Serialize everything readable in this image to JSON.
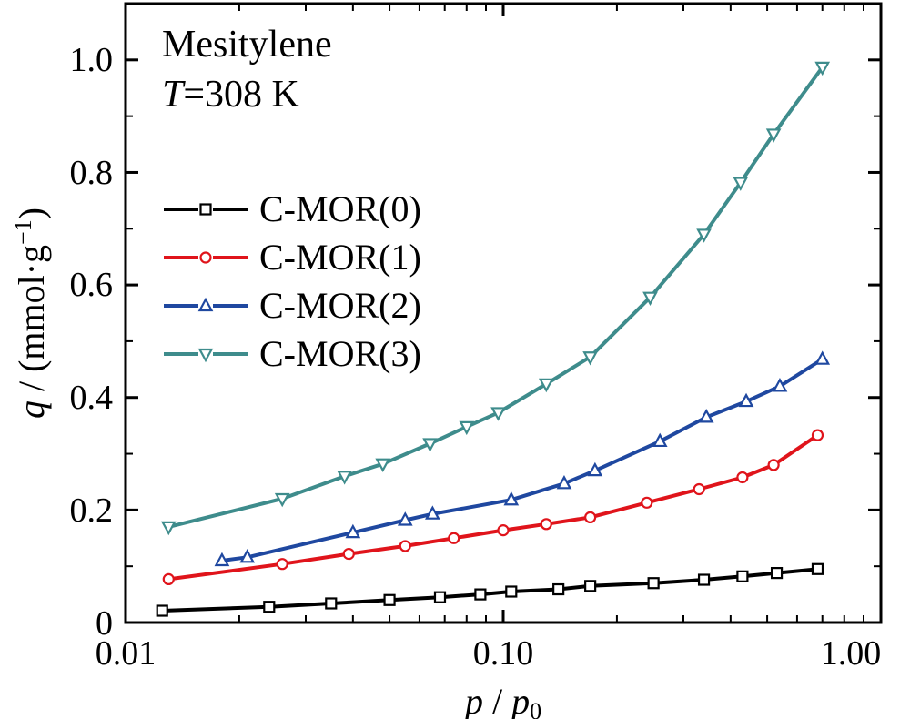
{
  "chart_data": {
    "type": "line",
    "title": "",
    "annotation": {
      "line1": "Mesitylene",
      "line2_italic": "T",
      "line2_rest": "=308 K"
    },
    "xlabel": {
      "italic_p": "p",
      "slash": " / ",
      "italic_p2": "p",
      "sub": "0"
    },
    "ylabel": {
      "italic_q": "q",
      "rest": " / (mmol·g",
      "sup": "−1",
      "close": ")"
    },
    "x_scale": "log",
    "xlim": [
      0.01,
      1.0
    ],
    "ylim": [
      0,
      1.1
    ],
    "x_ticks": [
      0.01,
      0.1,
      1.0
    ],
    "x_tick_labels": [
      "0.01",
      "0.10",
      "1.00"
    ],
    "y_ticks": [
      0,
      0.2,
      0.4,
      0.6,
      0.8,
      1.0
    ],
    "y_tick_labels": [
      "0",
      "0.2",
      "0.4",
      "0.6",
      "0.8",
      "1.0"
    ],
    "grid": false,
    "legend_position": "center-left",
    "series": [
      {
        "name": "C-MOR(0)",
        "color": "#000000",
        "marker": "square",
        "x": [
          0.0125,
          0.024,
          0.035,
          0.05,
          0.068,
          0.087,
          0.105,
          0.14,
          0.17,
          0.25,
          0.34,
          0.43,
          0.53,
          0.68
        ],
        "y": [
          0.021,
          0.028,
          0.034,
          0.04,
          0.045,
          0.05,
          0.055,
          0.059,
          0.065,
          0.07,
          0.076,
          0.082,
          0.088,
          0.095
        ]
      },
      {
        "name": "C-MOR(1)",
        "color": "#e0141b",
        "marker": "circle",
        "x": [
          0.013,
          0.026,
          0.039,
          0.055,
          0.074,
          0.1,
          0.13,
          0.17,
          0.24,
          0.33,
          0.43,
          0.52,
          0.68
        ],
        "y": [
          0.077,
          0.104,
          0.122,
          0.136,
          0.15,
          0.164,
          0.175,
          0.187,
          0.213,
          0.237,
          0.258,
          0.28,
          0.333
        ]
      },
      {
        "name": "C-MOR(2)",
        "color": "#1f48a0",
        "marker": "triangle-up",
        "x": [
          0.018,
          0.021,
          0.04,
          0.055,
          0.065,
          0.105,
          0.145,
          0.175,
          0.26,
          0.345,
          0.44,
          0.54,
          0.7
        ],
        "y": [
          0.11,
          0.116,
          0.16,
          0.182,
          0.193,
          0.218,
          0.247,
          0.27,
          0.322,
          0.365,
          0.393,
          0.42,
          0.468
        ]
      },
      {
        "name": "C-MOR(3)",
        "color": "#3e8c8c",
        "marker": "triangle-down",
        "x": [
          0.013,
          0.026,
          0.038,
          0.048,
          0.064,
          0.08,
          0.097,
          0.13,
          0.17,
          0.245,
          0.34,
          0.425,
          0.52,
          0.7
        ],
        "y": [
          0.17,
          0.22,
          0.26,
          0.282,
          0.318,
          0.348,
          0.373,
          0.424,
          0.472,
          0.578,
          0.69,
          0.782,
          0.868,
          0.987
        ]
      }
    ]
  }
}
